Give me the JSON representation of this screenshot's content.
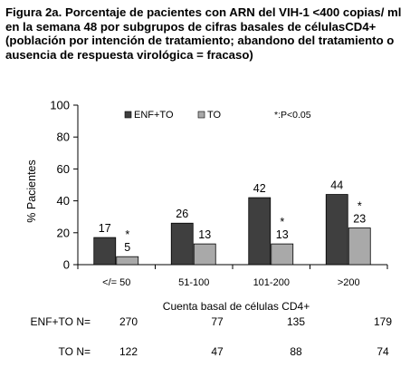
{
  "title": "Figura 2a. Porcentaje de pacientes con ARN del VIH-1 <400 copias/ ml en la semana 48 por subgrupos de cifras basales de célulasCD4+ (población por intención de tratamiento; abandono del tratamiento o ausencia de respuesta virológica = fracaso)",
  "chart_data": {
    "type": "bar",
    "categories": [
      "</= 50",
      "51-100",
      "101-200",
      ">200"
    ],
    "series": [
      {
        "name": "ENF+TO",
        "values": [
          17,
          26,
          42,
          44
        ],
        "color": "#3f3f3f"
      },
      {
        "name": "TO",
        "values": [
          5,
          13,
          13,
          23
        ],
        "color": "#a9a9a9"
      }
    ],
    "significance_marker": "*",
    "significant_categories": [
      "</= 50",
      "101-200",
      ">200"
    ],
    "significance_legend": "*:P<0.05",
    "xlabel": "Cuenta basal de células CD4+",
    "ylabel": "% Pacientes",
    "yticks": [
      0,
      20,
      40,
      60,
      80,
      100
    ],
    "ylim": [
      0,
      100
    ],
    "grid": false,
    "legend_position": "top"
  },
  "n_table": {
    "rows": [
      {
        "label": "ENF+TO N=",
        "values": [
          "270",
          "77",
          "135",
          "179"
        ]
      },
      {
        "label": "TO N=",
        "values": [
          "122",
          "47",
          "88",
          "74"
        ]
      }
    ]
  }
}
